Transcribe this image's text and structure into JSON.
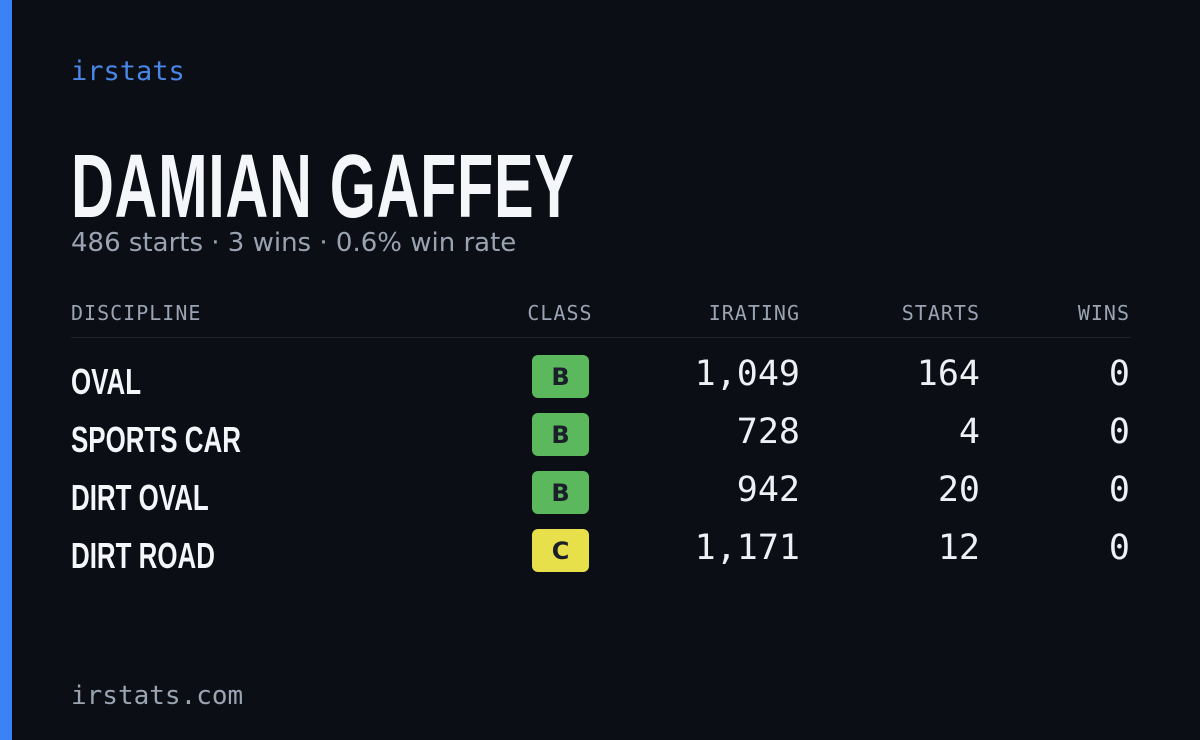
{
  "brand": "irstats",
  "title": "DAMIAN GAFFEY",
  "subtitle": "486 starts · 3 wins · 0.6% win rate",
  "table": {
    "headers": [
      "DISCIPLINE",
      "CLASS",
      "IRATING",
      "STARTS",
      "WINS"
    ],
    "rows": [
      [
        "OVAL",
        "B",
        "1,049",
        "164",
        "0"
      ],
      [
        "SPORTS CAR",
        "B",
        "728",
        "4",
        "0"
      ],
      [
        "DIRT OVAL",
        "B",
        "942",
        "20",
        "0"
      ],
      [
        "DIRT ROAD",
        "C",
        "1,171",
        "12",
        "0"
      ]
    ]
  },
  "class_colors": {
    "B": "#5cb85c",
    "C": "#e8e04a"
  },
  "footer": "irstats.com"
}
